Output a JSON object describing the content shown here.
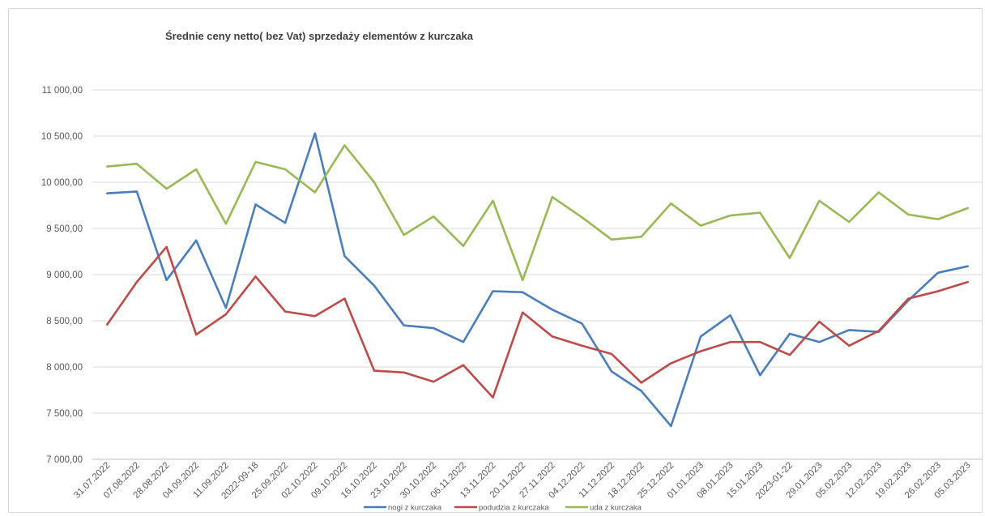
{
  "chart_data": {
    "type": "line",
    "title": "Średnie ceny netto( bez Vat) sprzedaży elementów z kurczaka",
    "xlabel": "",
    "ylabel": "",
    "ylim": [
      7000,
      11000
    ],
    "y_ticks": [
      7000,
      7500,
      8000,
      8500,
      9000,
      9500,
      10000,
      10500,
      11000
    ],
    "y_tick_labels": [
      "7 000,00",
      "7 500,00",
      "8 000,00",
      "8 500,00",
      "9 000,00",
      "9 500,00",
      "10 000,00",
      "10 500,00",
      "11 000,00"
    ],
    "grid": true,
    "legend_position": "bottom",
    "categories": [
      "31.07.2022",
      "07.08.2022",
      "28.08.2022",
      "04.09.2022",
      "11.09.2022",
      "2022-09-18",
      "25.09.2022",
      "02.10.2022",
      "09.10.2022",
      "16.10.2022",
      "23.10.2022",
      "30.10.2022",
      "06.11.2022",
      "13.11.2022",
      "20.11.2022",
      "27.11.2022",
      "04.12.2022",
      "11.12.2022",
      "18.12.2022",
      "25.12.2022",
      "01.01.2023",
      "08.01.2023",
      "15.01.2023",
      "2023-01-22",
      "29.01.2023",
      "05.02.2023",
      "12.02.2023",
      "19.02.2023",
      "26.02.2023",
      "05.03.2023"
    ],
    "series": [
      {
        "name": "nogi z kurczaka",
        "color": "#4a7ebb",
        "values": [
          9880,
          9900,
          8940,
          9370,
          8640,
          9760,
          9560,
          10530,
          9200,
          8880,
          8450,
          8420,
          8270,
          8820,
          8810,
          8620,
          8470,
          7950,
          7740,
          7360,
          8330,
          8560,
          7910,
          8360,
          8270,
          8400,
          8380,
          8720,
          9020,
          9090
        ]
      },
      {
        "name": "podudzia z kurczaka",
        "color": "#be4b48",
        "values": [
          8460,
          8920,
          9300,
          8350,
          8570,
          8980,
          8600,
          8550,
          8740,
          7960,
          7940,
          7840,
          8020,
          7670,
          8590,
          8330,
          8230,
          8140,
          7830,
          8040,
          8170,
          8270,
          8270,
          8130,
          8490,
          8230,
          8390,
          8740,
          8820,
          8920
        ]
      },
      {
        "name": "uda z kurczaka",
        "color": "#98b954",
        "values": [
          10170,
          10200,
          9930,
          10140,
          9550,
          10220,
          10140,
          9890,
          10400,
          10000,
          9430,
          9630,
          9310,
          9800,
          8940,
          9840,
          9620,
          9380,
          9410,
          9770,
          9530,
          9640,
          9670,
          9180,
          9800,
          9570,
          9890,
          9650,
          9600,
          9720
        ]
      }
    ]
  }
}
